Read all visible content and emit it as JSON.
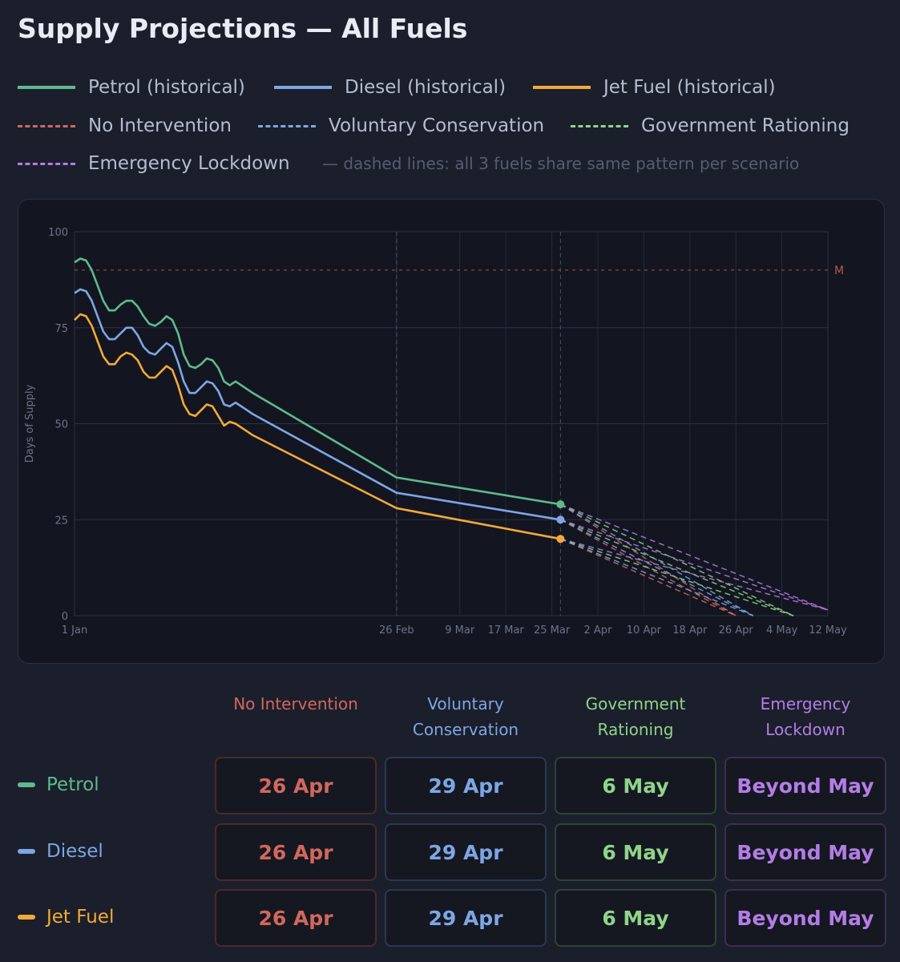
{
  "title": "Supply Projections — All Fuels",
  "legend": {
    "items": [
      {
        "label": "Petrol (historical)",
        "color": "#5fba8f",
        "style": "solid"
      },
      {
        "label": "Diesel (historical)",
        "color": "#7ea6e5",
        "style": "solid"
      },
      {
        "label": "Jet Fuel (historical)",
        "color": "#f2a93b",
        "style": "solid"
      },
      {
        "label": "No Intervention",
        "color": "#d2675e",
        "style": "dashed"
      },
      {
        "label": "Voluntary Conservation",
        "color": "#7ea6e5",
        "style": "dashed"
      },
      {
        "label": "Government Rationing",
        "color": "#8fd48a",
        "style": "dashed"
      },
      {
        "label": "Emergency Lockdown",
        "color": "#b47de6",
        "style": "dashed"
      }
    ],
    "note": "— dashed lines: all 3 fuels share same pattern per scenario"
  },
  "chart_data": {
    "type": "line",
    "ylabel": "Days of Supply",
    "ylim": [
      0,
      100
    ],
    "yticks": [
      0,
      25,
      50,
      75,
      100
    ],
    "xlim_day": [
      0,
      131
    ],
    "xticks": [
      {
        "day": 0,
        "label": "1 Jan"
      },
      {
        "day": 56,
        "label": "26 Feb"
      },
      {
        "day": 67,
        "label": "9 Mar"
      },
      {
        "day": 75,
        "label": "17 Mar"
      },
      {
        "day": 83,
        "label": "25 Mar"
      },
      {
        "day": 91,
        "label": "2 Apr"
      },
      {
        "day": 99,
        "label": "10 Apr"
      },
      {
        "day": 107,
        "label": "18 Apr"
      },
      {
        "day": 115,
        "label": "26 Apr"
      },
      {
        "day": 123,
        "label": "4 May"
      },
      {
        "day": 131,
        "label": "12 May"
      }
    ],
    "reference_line": {
      "y": 90,
      "label": "M",
      "color": "#8a4545"
    },
    "vertical_markers": [
      56,
      84.5
    ],
    "today_day": 84.5,
    "series": [
      {
        "name": "Petrol (historical)",
        "color": "#5fba8f",
        "x": [
          0,
          1,
          2,
          3,
          4,
          5,
          6,
          7,
          8,
          9,
          10,
          11,
          12,
          13,
          14,
          15,
          16,
          17,
          18,
          19,
          20,
          21,
          22,
          23,
          24,
          25,
          26,
          27,
          28,
          29,
          30,
          31,
          56,
          84.5
        ],
        "y": [
          92,
          93,
          92.5,
          90,
          86,
          82,
          79.5,
          79.5,
          81,
          82,
          82,
          80.5,
          78,
          76,
          75.5,
          76.5,
          78,
          77,
          73.5,
          68,
          65,
          64.5,
          65.5,
          67,
          66.5,
          64.5,
          61,
          60,
          61,
          60,
          59,
          58,
          36,
          29
        ]
      },
      {
        "name": "Diesel (historical)",
        "color": "#7ea6e5",
        "x": [
          0,
          1,
          2,
          3,
          4,
          5,
          6,
          7,
          8,
          9,
          10,
          11,
          12,
          13,
          14,
          15,
          16,
          17,
          18,
          19,
          20,
          21,
          22,
          23,
          24,
          25,
          26,
          27,
          28,
          29,
          30,
          31,
          56,
          84.5
        ],
        "y": [
          84,
          85,
          84.5,
          82,
          78,
          74,
          72,
          72,
          73.5,
          75,
          75,
          73,
          70,
          68.5,
          68,
          69.5,
          71,
          70,
          66,
          61,
          58,
          58,
          59.5,
          61,
          60.5,
          58.5,
          55,
          54.5,
          55.5,
          54.5,
          53.5,
          52.5,
          32,
          25
        ]
      },
      {
        "name": "Jet Fuel (historical)",
        "color": "#f2a93b",
        "x": [
          0,
          1,
          2,
          3,
          4,
          5,
          6,
          7,
          8,
          9,
          10,
          11,
          12,
          13,
          14,
          15,
          16,
          17,
          18,
          19,
          20,
          21,
          22,
          23,
          24,
          25,
          26,
          27,
          28,
          29,
          30,
          31,
          56,
          84.5
        ],
        "y": [
          77,
          78.5,
          78,
          75.5,
          71.5,
          67.5,
          65.5,
          65.5,
          67.5,
          68.5,
          68,
          66.5,
          63.5,
          62,
          62,
          63.5,
          65,
          64,
          60,
          55,
          52.5,
          52,
          53.5,
          55,
          54.5,
          52,
          49.5,
          50.5,
          50,
          49,
          48,
          47,
          28,
          20
        ]
      }
    ],
    "projections": [
      {
        "scenario": "No Intervention",
        "color": "#d2675e",
        "end_day": {
          "Petrol": 115,
          "Diesel": 115,
          "Jet Fuel": 115
        }
      },
      {
        "scenario": "Voluntary Conservation",
        "color": "#7ea6e5",
        "end_day": {
          "Petrol": 118,
          "Diesel": 118,
          "Jet Fuel": 118
        }
      },
      {
        "scenario": "Government Rationing",
        "color": "#8fd48a",
        "end_day": {
          "Petrol": 125,
          "Diesel": 125,
          "Jet Fuel": 125
        }
      },
      {
        "scenario": "Emergency Lockdown",
        "color": "#b47de6",
        "end_day": {
          "Petrol": 131,
          "Diesel": 131,
          "Jet Fuel": 131
        },
        "end_value": 1.5
      }
    ]
  },
  "table": {
    "columns": [
      {
        "label": "No Intervention",
        "color": "#d2675e",
        "cls": "c-red"
      },
      {
        "label": "Voluntary Conservation",
        "color": "#7ea6e5",
        "cls": "c-blue"
      },
      {
        "label": "Government Rationing",
        "color": "#8fd48a",
        "cls": "c-green"
      },
      {
        "label": "Emergency Lockdown",
        "color": "#b47de6",
        "cls": "c-purple"
      }
    ],
    "rows": [
      {
        "label": "Petrol",
        "color": "#5fba8f",
        "values": [
          "26 Apr",
          "29 Apr",
          "6 May",
          "Beyond May"
        ]
      },
      {
        "label": "Diesel",
        "color": "#7ea6e5",
        "values": [
          "26 Apr",
          "29 Apr",
          "6 May",
          "Beyond May"
        ]
      },
      {
        "label": "Jet Fuel",
        "color": "#f2a93b",
        "values": [
          "26 Apr",
          "29 Apr",
          "6 May",
          "Beyond May"
        ]
      }
    ]
  }
}
